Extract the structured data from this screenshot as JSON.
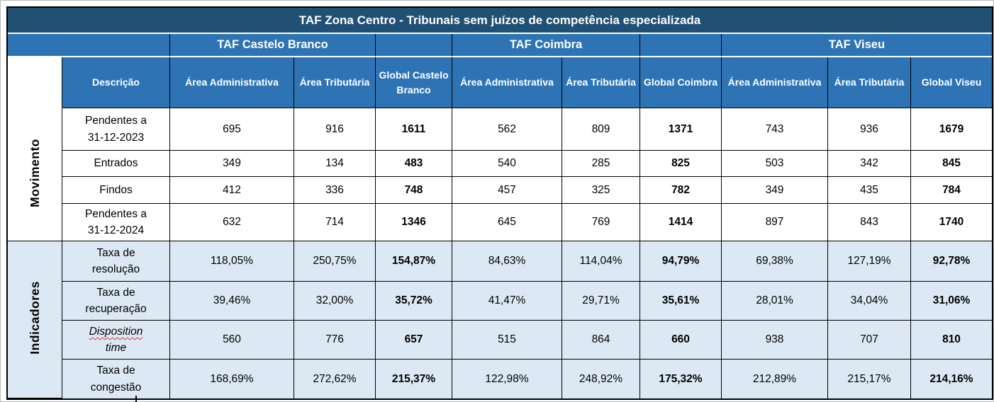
{
  "title": "TAF Zona Centro - Tribunais sem juízos de competência especializada",
  "groups": [
    {
      "label": "TAF Castelo Branco"
    },
    {
      "label": "TAF Coimbra"
    },
    {
      "label": "TAF Viseu"
    }
  ],
  "columns": {
    "descricao_label": "Descrição",
    "headers": [
      "Área Administrativa",
      "Área Tributária",
      "Global Castelo Branco",
      "Área Administrativa",
      "Área Tributária",
      "Global Coimbra",
      "Área Administrativa",
      "Área Tributária",
      "Global Viseu"
    ]
  },
  "sections": [
    {
      "label": "Movimento",
      "rows": [
        {
          "label": "Pendentes a\n31-12-2023",
          "values": [
            "695",
            "916",
            "1611",
            "562",
            "809",
            "1371",
            "743",
            "936",
            "1679"
          ]
        },
        {
          "label": "Entrados",
          "values": [
            "349",
            "134",
            "483",
            "540",
            "285",
            "825",
            "503",
            "342",
            "845"
          ]
        },
        {
          "label": "Findos",
          "values": [
            "412",
            "336",
            "748",
            "457",
            "325",
            "782",
            "349",
            "435",
            "784"
          ]
        },
        {
          "label": "Pendentes a\n31-12-2024",
          "values": [
            "632",
            "714",
            "1346",
            "645",
            "769",
            "1414",
            "897",
            "843",
            "1740"
          ]
        }
      ]
    },
    {
      "label": "Indicadores",
      "rows": [
        {
          "label": "Taxa de\nresolução",
          "values": [
            "118,05%",
            "250,75%",
            "154,87%",
            "84,63%",
            "114,04%",
            "94,79%",
            "69,38%",
            "127,19%",
            "92,78%"
          ]
        },
        {
          "label": "Taxa de\nrecuperação",
          "values": [
            "39,46%",
            "32,00%",
            "35,72%",
            "41,47%",
            "29,71%",
            "35,61%",
            "28,01%",
            "34,04%",
            "31,06%"
          ]
        },
        {
          "label": "Disposition\ntime",
          "italic": true,
          "wavy_first": true,
          "values": [
            "560",
            "776",
            "657",
            "515",
            "864",
            "660",
            "938",
            "707",
            "810"
          ]
        },
        {
          "label": "Taxa de\ncongestão",
          "values": [
            "168,69%",
            "272,62%",
            "215,37%",
            "122,98%",
            "248,92%",
            "175,32%",
            "212,89%",
            "215,17%",
            "214,16%"
          ]
        }
      ]
    }
  ],
  "colors": {
    "title_bg": "#215075",
    "header_bg": "#2E74B5",
    "header_text": "#FFFFFF",
    "indicator_section_bg": "#DCE9F4",
    "border": "#000000",
    "spellcheck_wavy": "#E03131"
  }
}
